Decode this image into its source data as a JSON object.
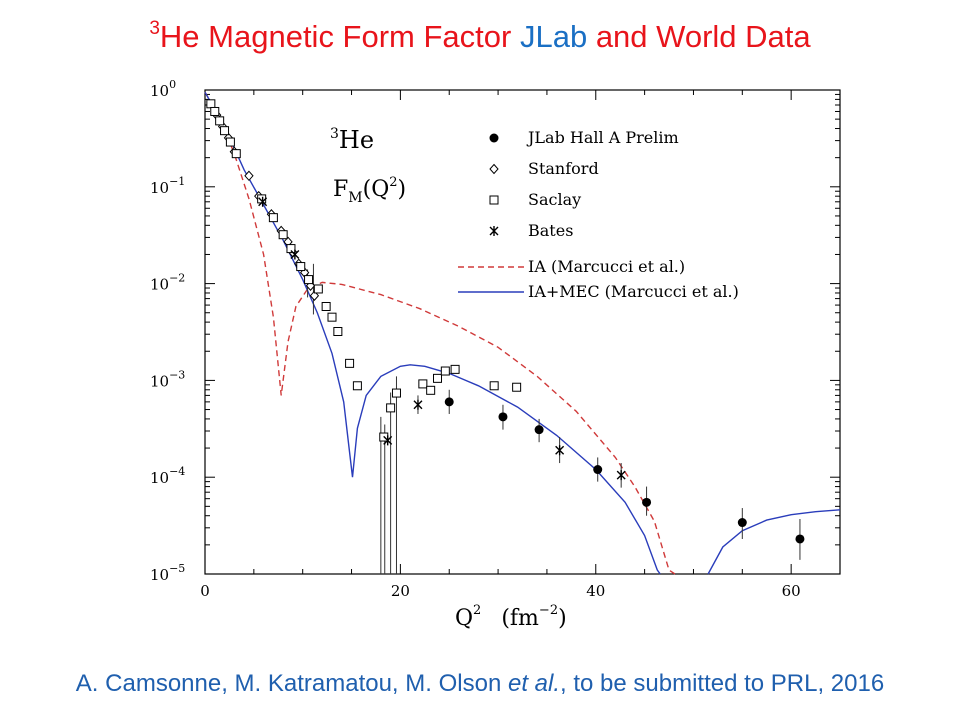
{
  "header": {
    "title_sup": "3",
    "title_part1": "He Magnetic Form Factor ",
    "title_part2": "JLab",
    "title_part3": " and World Data"
  },
  "footer": {
    "cite_part1": "A. Camsonne, M. Katramatou, M. Olson ",
    "cite_etal": "et al.",
    "cite_part2": ", to be submitted to PRL, 2016"
  },
  "colors": {
    "title_red": "#e8141b",
    "title_blue": "#1a6fc4",
    "ia": "#d03a3a",
    "ia_mec": "#2a3dbb"
  },
  "chart_data": {
    "type": "scatter",
    "title": "",
    "inner_label_sup": "3",
    "inner_label": "He",
    "inner_label2": "F",
    "inner_label2_sub": "M",
    "inner_label2_rest": "(Q",
    "inner_label2_sup": "2",
    "inner_label2_end": ")",
    "xlabel": "Q",
    "xlabel_sup": "2",
    "xlabel_unit": "(fm",
    "xlabel_unit_sup": "−2",
    "xlabel_unit_end": ")",
    "xlim": [
      0,
      65
    ],
    "ylim": [
      1e-05,
      1
    ],
    "yscale": "log",
    "xticks": [
      0,
      20,
      40,
      60
    ],
    "yticks": [
      {
        "value": 1,
        "base": "10",
        "exp": "0"
      },
      {
        "value": 0.1,
        "base": "10",
        "exp": "−1"
      },
      {
        "value": 0.01,
        "base": "10",
        "exp": "−2"
      },
      {
        "value": 0.001,
        "base": "10",
        "exp": "−3"
      },
      {
        "value": 0.0001,
        "base": "10",
        "exp": "−4"
      },
      {
        "value": 1e-05,
        "base": "10",
        "exp": "−5"
      }
    ],
    "legend_position": "top-right",
    "series": [
      {
        "name": "JLab Hall A Prelim",
        "marker": "filled-circle",
        "points": [
          {
            "x": 25.0,
            "y": 0.0006,
            "lo": 0.00045,
            "hi": 0.0008
          },
          {
            "x": 30.5,
            "y": 0.00042,
            "lo": 0.00031,
            "hi": 0.00056
          },
          {
            "x": 34.2,
            "y": 0.00031,
            "lo": 0.00023,
            "hi": 0.0004
          },
          {
            "x": 40.2,
            "y": 0.00012,
            "lo": 9e-05,
            "hi": 0.00016
          },
          {
            "x": 45.2,
            "y": 5.5e-05,
            "lo": 4e-05,
            "hi": 8e-05
          },
          {
            "x": 55.0,
            "y": 3.4e-05,
            "lo": 2.3e-05,
            "hi": 4.8e-05
          },
          {
            "x": 60.9,
            "y": 2.3e-05,
            "lo": 1.4e-05,
            "hi": 3.7e-05
          }
        ]
      },
      {
        "name": "Stanford",
        "marker": "open-diamond",
        "points": [
          {
            "x": 1.2,
            "y": 0.55
          },
          {
            "x": 1.8,
            "y": 0.42
          },
          {
            "x": 2.4,
            "y": 0.32
          },
          {
            "x": 3.0,
            "y": 0.23
          },
          {
            "x": 4.5,
            "y": 0.13
          },
          {
            "x": 5.5,
            "y": 0.08
          },
          {
            "x": 6.8,
            "y": 0.052
          },
          {
            "x": 7.8,
            "y": 0.035
          },
          {
            "x": 8.5,
            "y": 0.027
          },
          {
            "x": 9.0,
            "y": 0.021
          },
          {
            "x": 9.6,
            "y": 0.016
          },
          {
            "x": 10.2,
            "y": 0.013
          },
          {
            "x": 10.8,
            "y": 0.0095
          },
          {
            "x": 11.2,
            "y": 0.0075
          }
        ]
      },
      {
        "name": "Saclay",
        "marker": "open-square",
        "points": [
          {
            "x": 0.6,
            "y": 0.72
          },
          {
            "x": 1.0,
            "y": 0.6
          },
          {
            "x": 1.5,
            "y": 0.48
          },
          {
            "x": 2.0,
            "y": 0.38
          },
          {
            "x": 2.6,
            "y": 0.29
          },
          {
            "x": 3.2,
            "y": 0.22
          },
          {
            "x": 5.8,
            "y": 0.075
          },
          {
            "x": 7.0,
            "y": 0.048
          },
          {
            "x": 8.0,
            "y": 0.032
          },
          {
            "x": 8.8,
            "y": 0.023
          },
          {
            "x": 9.8,
            "y": 0.015
          },
          {
            "x": 10.6,
            "y": 0.011
          },
          {
            "x": 11.6,
            "y": 0.0088
          },
          {
            "x": 12.4,
            "y": 0.0058
          },
          {
            "x": 13.0,
            "y": 0.0045
          },
          {
            "x": 13.6,
            "y": 0.0032
          },
          {
            "x": 14.8,
            "y": 0.0015
          },
          {
            "x": 15.6,
            "y": 0.00088
          },
          {
            "x": 18.3,
            "y": 0.00026
          },
          {
            "x": 19.0,
            "y": 0.00052
          },
          {
            "x": 19.6,
            "y": 0.00074
          },
          {
            "x": 22.3,
            "y": 0.00092
          },
          {
            "x": 23.1,
            "y": 0.00079
          },
          {
            "x": 23.8,
            "y": 0.00105
          },
          {
            "x": 24.6,
            "y": 0.00125
          },
          {
            "x": 25.6,
            "y": 0.0013
          },
          {
            "x": 29.6,
            "y": 0.00088
          },
          {
            "x": 31.9,
            "y": 0.00085
          }
        ]
      },
      {
        "name": "Bates",
        "marker": "star",
        "points": [
          {
            "x": 5.9,
            "y": 0.07
          },
          {
            "x": 9.2,
            "y": 0.02
          },
          {
            "x": 18.7,
            "y": 0.00024
          },
          {
            "x": 21.8,
            "y": 0.00056
          },
          {
            "x": 36.3,
            "y": 0.00019
          },
          {
            "x": 42.6,
            "y": 0.000105
          }
        ]
      },
      {
        "name": "IA (Marcucci et al.)",
        "style": "dashed",
        "color": "#d03a3a",
        "points": [
          {
            "x": 0,
            "y": 0.95
          },
          {
            "x": 1.5,
            "y": 0.52
          },
          {
            "x": 3,
            "y": 0.22
          },
          {
            "x": 4.5,
            "y": 0.075
          },
          {
            "x": 6,
            "y": 0.02
          },
          {
            "x": 7,
            "y": 0.0045
          },
          {
            "x": 7.8,
            "y": 0.0007
          },
          {
            "x": 8.5,
            "y": 0.0025
          },
          {
            "x": 9.3,
            "y": 0.0058
          },
          {
            "x": 10.5,
            "y": 0.0088
          },
          {
            "x": 12,
            "y": 0.0103
          },
          {
            "x": 14,
            "y": 0.0098
          },
          {
            "x": 18,
            "y": 0.0077
          },
          {
            "x": 22,
            "y": 0.0055
          },
          {
            "x": 26,
            "y": 0.0036
          },
          {
            "x": 30,
            "y": 0.0022
          },
          {
            "x": 34,
            "y": 0.0011
          },
          {
            "x": 38,
            "y": 0.00048
          },
          {
            "x": 42,
            "y": 0.00016
          },
          {
            "x": 44,
            "y": 8e-05
          },
          {
            "x": 46,
            "y": 3.5e-05
          },
          {
            "x": 47.5,
            "y": 1.1e-05
          },
          {
            "x": 48.1,
            "y": 1e-05
          }
        ]
      },
      {
        "name": "IA+MEC (Marcucci et al.)",
        "style": "solid",
        "color": "#2a3dbb",
        "points": [
          {
            "x": 0,
            "y": 0.95
          },
          {
            "x": 2,
            "y": 0.42
          },
          {
            "x": 4,
            "y": 0.15
          },
          {
            "x": 6,
            "y": 0.065
          },
          {
            "x": 8,
            "y": 0.028
          },
          {
            "x": 10,
            "y": 0.011
          },
          {
            "x": 11.5,
            "y": 0.005
          },
          {
            "x": 13,
            "y": 0.0019
          },
          {
            "x": 14.2,
            "y": 0.0006
          },
          {
            "x": 14.8,
            "y": 0.00018
          },
          {
            "x": 15.1,
            "y": 0.0001
          },
          {
            "x": 15.6,
            "y": 0.00032
          },
          {
            "x": 16.5,
            "y": 0.0007
          },
          {
            "x": 18,
            "y": 0.0011
          },
          {
            "x": 20,
            "y": 0.0014
          },
          {
            "x": 21,
            "y": 0.00145
          },
          {
            "x": 22.5,
            "y": 0.0014
          },
          {
            "x": 25,
            "y": 0.00118
          },
          {
            "x": 28,
            "y": 0.00088
          },
          {
            "x": 32,
            "y": 0.00053
          },
          {
            "x": 36,
            "y": 0.00027
          },
          {
            "x": 40,
            "y": 0.00012
          },
          {
            "x": 43,
            "y": 5.5e-05
          },
          {
            "x": 45,
            "y": 2.5e-05
          },
          {
            "x": 46.3,
            "y": 1.1e-05
          },
          {
            "x": 46.6,
            "y": 1e-05
          }
        ]
      },
      {
        "name": "IA+MEC (Marcucci et al.) second maximum",
        "style": "solid",
        "color": "#2a3dbb",
        "legend": false,
        "points": [
          {
            "x": 51.5,
            "y": 1e-05
          },
          {
            "x": 53,
            "y": 1.9e-05
          },
          {
            "x": 55,
            "y": 2.8e-05
          },
          {
            "x": 57.5,
            "y": 3.6e-05
          },
          {
            "x": 60,
            "y": 4.1e-05
          },
          {
            "x": 62.5,
            "y": 4.4e-05
          },
          {
            "x": 65,
            "y": 4.6e-05
          }
        ]
      }
    ],
    "error_bars": [
      {
        "x": 18.0,
        "lo": 1e-05,
        "hi": 0.00042
      },
      {
        "x": 18.4,
        "lo": 1e-05,
        "hi": 0.00035
      },
      {
        "x": 19.0,
        "lo": 1e-05,
        "hi": 0.00075
      },
      {
        "x": 19.6,
        "lo": 1e-05,
        "hi": 0.0011
      },
      {
        "x": 11.1,
        "lo": 0.0048,
        "hi": 0.016
      },
      {
        "x": 10.5,
        "lo": 0.0072,
        "hi": 0.014
      },
      {
        "x": 36.3,
        "lo": 0.00014,
        "hi": 0.00026
      },
      {
        "x": 42.6,
        "lo": 7.8e-05,
        "hi": 0.00014
      },
      {
        "x": 21.8,
        "lo": 0.00045,
        "hi": 0.0007
      }
    ]
  }
}
